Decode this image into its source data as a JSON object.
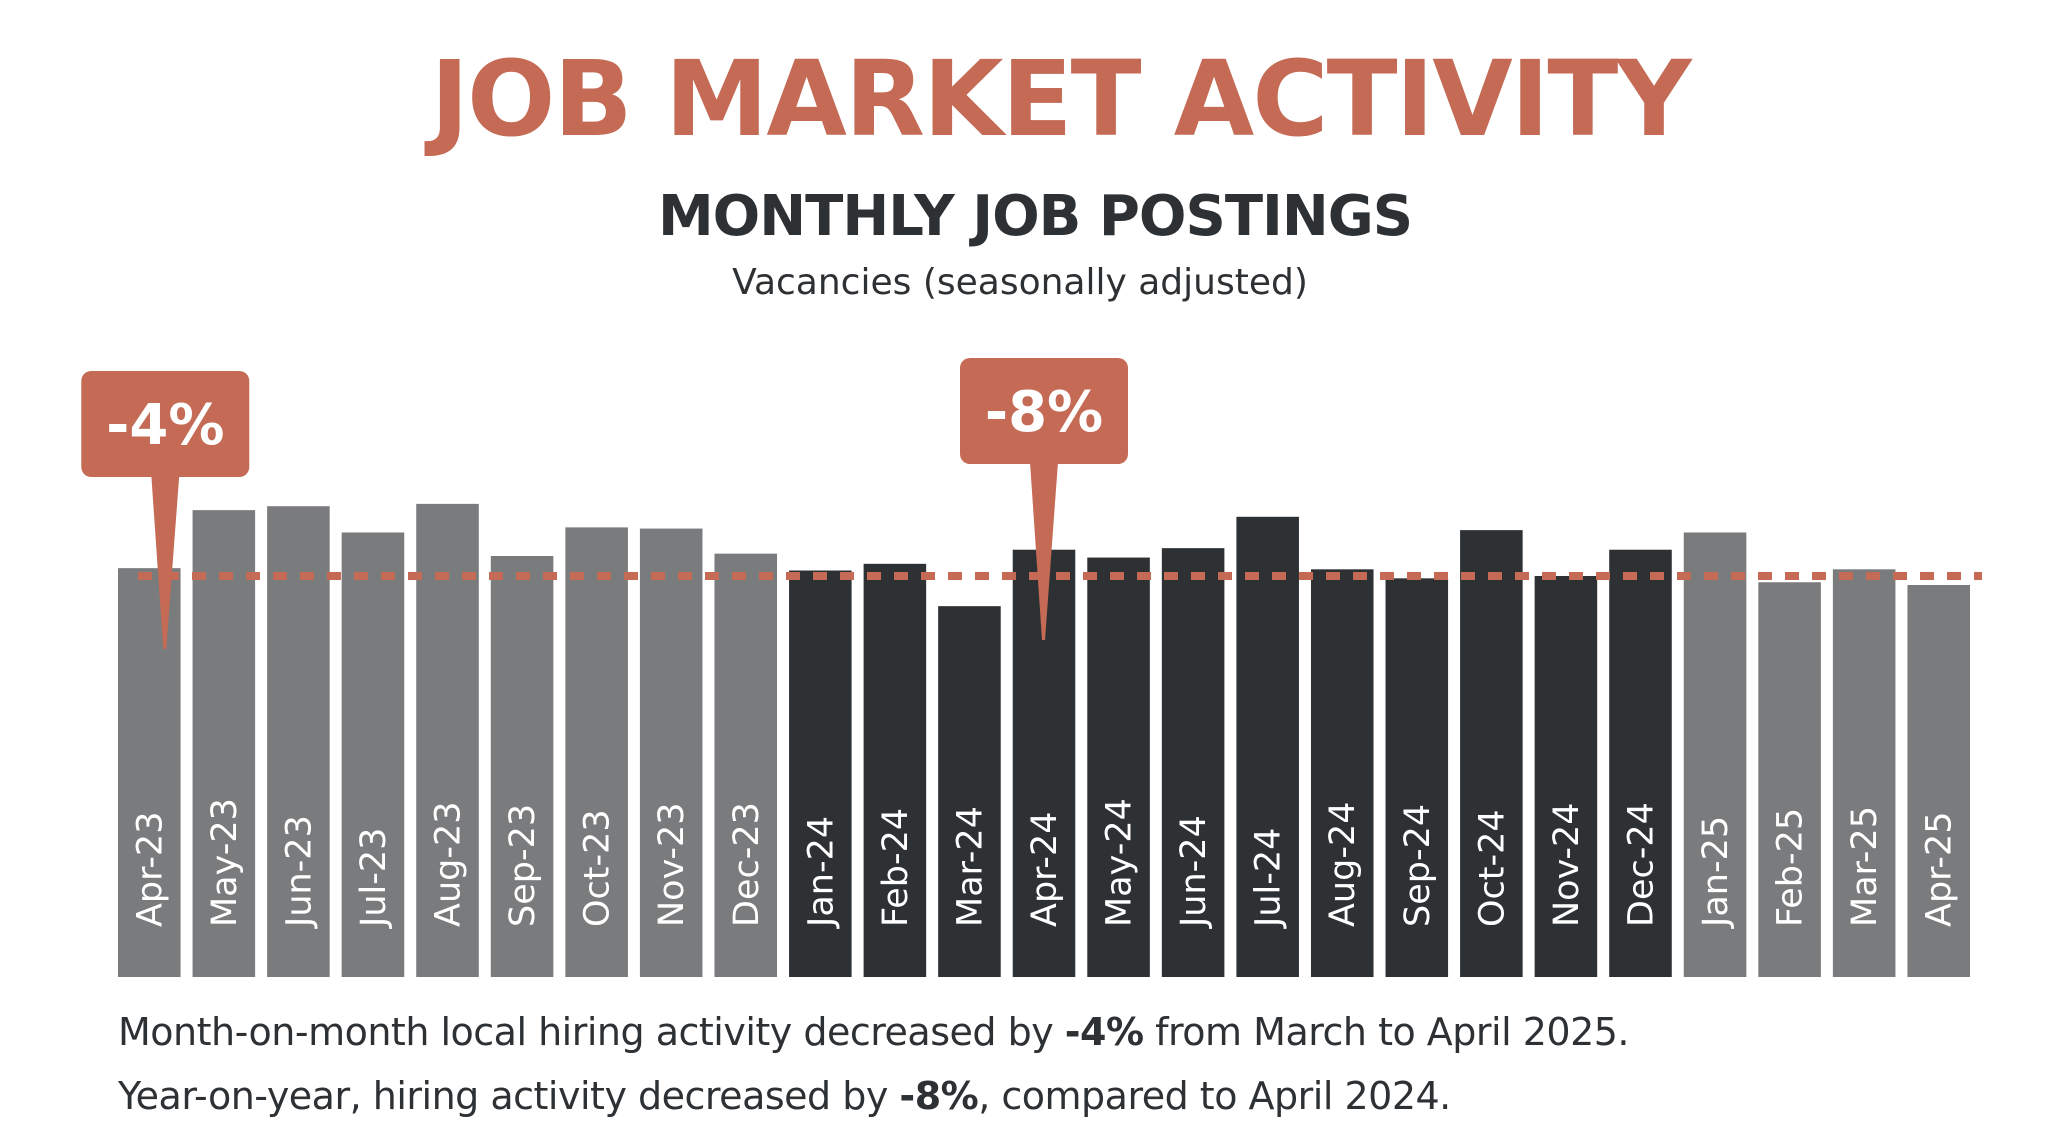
{
  "header": {
    "title": "JOB MARKET ACTIVITY"
  },
  "chart_data": {
    "type": "bar",
    "title": "MONTHLY JOB POSTINGS",
    "subtitle": "Vacancies (seasonally adjusted)",
    "categories": [
      "Apr-23",
      "May-23",
      "Jun-23",
      "Jul-23",
      "Aug-23",
      "Sep-23",
      "Oct-23",
      "Nov-23",
      "Dec-23",
      "Jan-24",
      "Feb-24",
      "Mar-24",
      "Apr-24",
      "May-24",
      "Jun-24",
      "Jul-24",
      "Aug-24",
      "Sep-24",
      "Oct-24",
      "Nov-24",
      "Dec-24",
      "Jan-25",
      "Feb-25",
      "Mar-25",
      "Apr-25"
    ],
    "values": [
      104.3,
      119.1,
      120.1,
      113.4,
      120.7,
      107.4,
      114.7,
      114.4,
      108.0,
      103.7,
      105.4,
      94.6,
      109.0,
      107.0,
      109.4,
      117.4,
      104.0,
      101.7,
      114.0,
      102.3,
      109.0,
      113.4,
      100.7,
      104.0,
      100.0
    ],
    "value_note": "no value axis printed; values are relative bar heights (Apr-25 = 100)",
    "ylim": [
      0,
      125
    ],
    "grid": false,
    "colors": {
      "2023": "#7a7b7d",
      "2024": "#2e3134",
      "2025": "#7a7b7d",
      "reference_line": "#c46a55",
      "callout": "#c46a55"
    },
    "reference_line": {
      "value": 100.0,
      "style": "dotted"
    },
    "annotations": [
      {
        "label": "-4%",
        "category": "Apr-23"
      },
      {
        "label": "-8%",
        "category": "Apr-24"
      }
    ]
  },
  "notes": {
    "line1": {
      "before": "Month-on-month local hiring activity decreased by ",
      "bold": "-4%",
      "after": " from March to April 2025."
    },
    "line2": {
      "before": "Year-on-year, hiring activity decreased by ",
      "bold": "-8%",
      "after": ", compared to April 2024."
    }
  }
}
